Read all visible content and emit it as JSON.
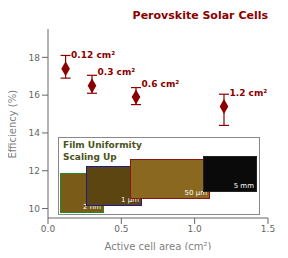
{
  "chart_data": {
    "type": "scatter",
    "title": "Perovskite Solar Cells",
    "xlabel": "Active cell area (cm²)",
    "ylabel": "Efficiency (%)",
    "x": [
      0.12,
      0.3,
      0.6,
      1.2
    ],
    "values": [
      17.4,
      16.5,
      15.9,
      15.4
    ],
    "error": {
      "plus": [
        0.7,
        0.55,
        0.5,
        0.65
      ],
      "minus": [
        0.5,
        0.4,
        0.4,
        1.0
      ]
    },
    "labels": [
      "0.12 cm²",
      "0.3 cm²",
      "0.6 cm²",
      "1.2 cm²"
    ],
    "marker": "diamond",
    "color": "#8B0000",
    "xlim": [
      0.0,
      1.5
    ],
    "ylim": [
      9.5,
      19.5
    ],
    "xticks": [
      {
        "value": 0.0,
        "label": "0.0"
      },
      0.5,
      {
        "value": 1.0,
        "label": "1.0"
      },
      1.5
    ],
    "yticks": [
      10,
      12,
      14,
      16,
      18
    ],
    "grid": false,
    "annotations": [
      {
        "text": "Film Uniformity\nScaling Up",
        "color": "#4B5320"
      },
      {
        "text": "2 nm",
        "color": "#ffffff"
      },
      {
        "text": "1 μm",
        "color": "#ffffff"
      },
      {
        "text": "50 μm",
        "color": "#ffffff"
      },
      {
        "text": "5 mm",
        "color": "#ffffff"
      }
    ]
  }
}
